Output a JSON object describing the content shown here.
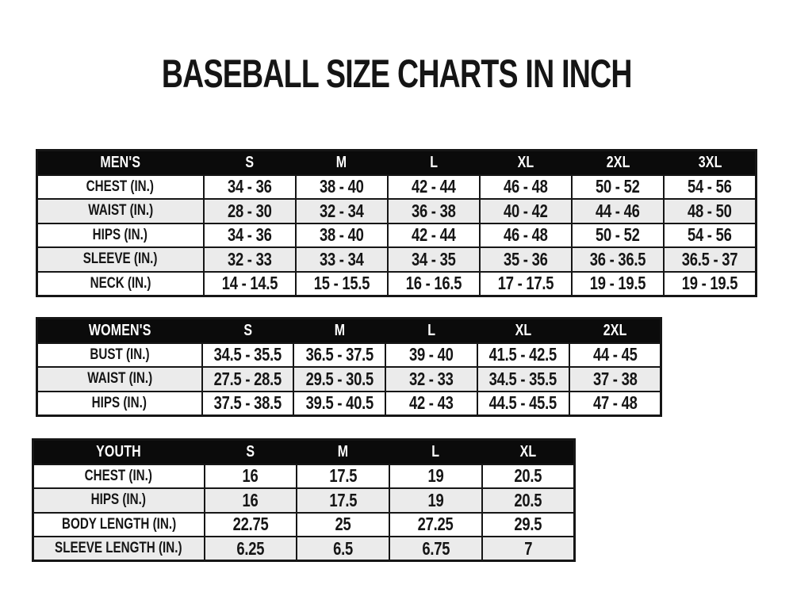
{
  "title": "BASEBALL SIZE CHARTS IN INCH",
  "colors": {
    "page_bg": "#ffffff",
    "header_bg": "#0b0b0b",
    "header_text": "#ffffff",
    "row_bg": "#ffffff",
    "row_alt_bg": "#ebebeb",
    "border": "#161616",
    "text": "#151515"
  },
  "chart_data": [
    {
      "type": "table",
      "title": "MEN'S",
      "columns": [
        "MEN'S",
        "S",
        "M",
        "L",
        "XL",
        "2XL",
        "3XL"
      ],
      "rows": [
        [
          "CHEST (IN.)",
          "34 - 36",
          "38 - 40",
          "42 - 44",
          "46 - 48",
          "50 - 52",
          "54 - 56"
        ],
        [
          "WAIST (IN.)",
          "28 - 30",
          "32 - 34",
          "36 - 38",
          "40 - 42",
          "44 - 46",
          "48 - 50"
        ],
        [
          "HIPS (IN.)",
          "34 - 36",
          "38 - 40",
          "42 - 44",
          "46 - 48",
          "50 - 52",
          "54 - 56"
        ],
        [
          "SLEEVE (IN.)",
          "32 - 33",
          "33 - 34",
          "34 - 35",
          "35 - 36",
          "36 - 36.5",
          "36.5 - 37"
        ],
        [
          "NECK (IN.)",
          "14 - 14.5",
          "15 - 15.5",
          "16 - 16.5",
          "17 - 17.5",
          "19 - 19.5",
          "19 - 19.5"
        ]
      ]
    },
    {
      "type": "table",
      "title": "WOMEN'S",
      "columns": [
        "WOMEN'S",
        "S",
        "M",
        "L",
        "XL",
        "2XL"
      ],
      "rows": [
        [
          "BUST (IN.)",
          "34.5 - 35.5",
          "36.5 - 37.5",
          "39 - 40",
          "41.5 - 42.5",
          "44 - 45"
        ],
        [
          "WAIST (IN.)",
          "27.5 - 28.5",
          "29.5 - 30.5",
          "32 - 33",
          "34.5 - 35.5",
          "37 - 38"
        ],
        [
          "HIPS (IN.)",
          "37.5 - 38.5",
          "39.5 - 40.5",
          "42 - 43",
          "44.5 - 45.5",
          "47 - 48"
        ]
      ]
    },
    {
      "type": "table",
      "title": "YOUTH",
      "columns": [
        "YOUTH",
        "S",
        "M",
        "L",
        "XL"
      ],
      "rows": [
        [
          "CHEST (IN.)",
          "16",
          "17.5",
          "19",
          "20.5"
        ],
        [
          "HIPS (IN.)",
          "16",
          "17.5",
          "19",
          "20.5"
        ],
        [
          "BODY LENGTH (IN.)",
          "22.75",
          "25",
          "27.25",
          "29.5"
        ],
        [
          "SLEEVE LENGTH (IN.)",
          "6.25",
          "6.5",
          "6.75",
          "7"
        ]
      ]
    }
  ]
}
